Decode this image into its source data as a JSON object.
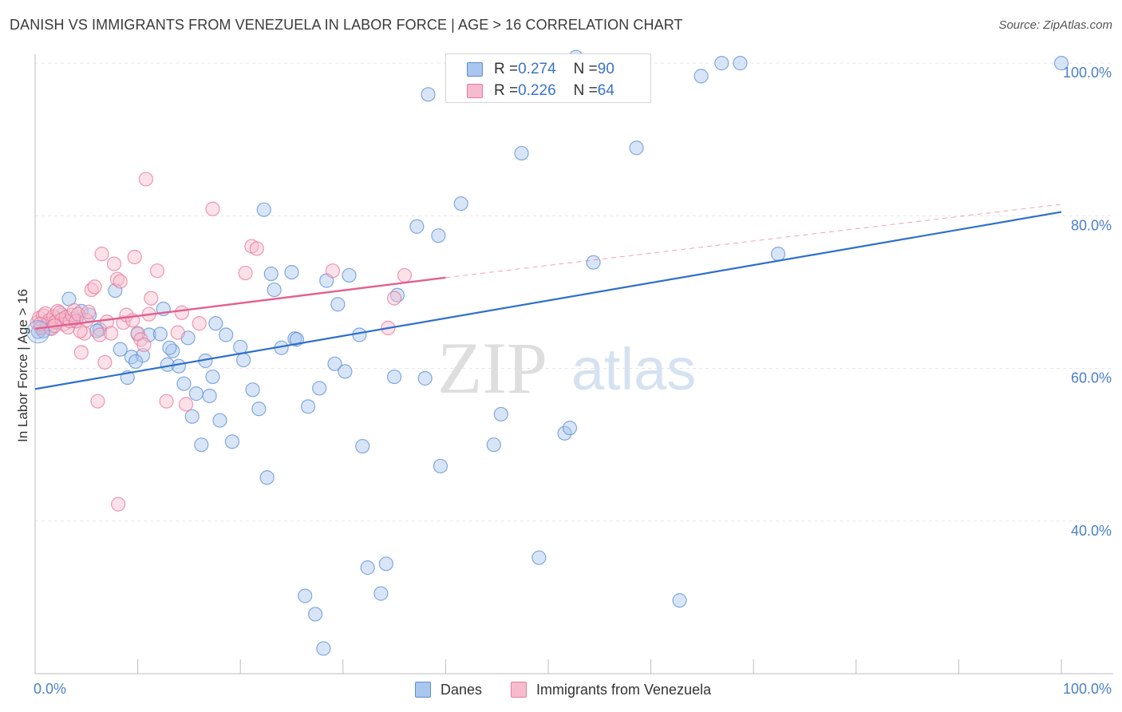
{
  "header": {
    "title": "DANISH VS IMMIGRANTS FROM VENEZUELA IN LABOR FORCE | AGE > 16 CORRELATION CHART",
    "source": "Source: ZipAtlas.com"
  },
  "watermark": {
    "zip": "ZIP",
    "atlas": "atlas"
  },
  "colors": {
    "danes_fill": "#a9c6ee",
    "danes_stroke": "#5b8fd6",
    "danes_line": "#2f6fcb",
    "venezuela_fill": "#f6bccd",
    "venezuela_stroke": "#e8789c",
    "venezuela_line": "#e2608f",
    "tick_label": "#4a7fc9",
    "grid": "#e6e6e6"
  },
  "legend": {
    "rows": [
      {
        "r_label": "R = ",
        "r_value": "0.274",
        "n_label": "N = ",
        "n_value": "90"
      },
      {
        "r_label": "R = ",
        "r_value": "0.226",
        "n_label": "N = ",
        "n_value": "64"
      }
    ]
  },
  "bottom_legend": {
    "danes": "Danes",
    "venezuela": "Immigrants from Venezuela"
  },
  "chart_data": {
    "type": "scatter",
    "ylabel": "In Labor Force | Age > 16",
    "xlabel": "",
    "xlim": [
      0,
      100
    ],
    "ylim": [
      20,
      102
    ],
    "x_ticks": [
      {
        "value": 0,
        "label": "0.0%"
      },
      {
        "value": 100,
        "label": "100.0%"
      }
    ],
    "x_minor_ticks": [
      10,
      20,
      30,
      40,
      50,
      60,
      70,
      80,
      90,
      100
    ],
    "y_ticks": [
      {
        "value": 40,
        "label": "40.0%"
      },
      {
        "value": 60,
        "label": "60.0%"
      },
      {
        "value": 80,
        "label": "80.0%"
      },
      {
        "value": 100,
        "label": "100.0%"
      }
    ],
    "grid": true,
    "legend_position": "top-center",
    "series": [
      {
        "name": "Danes",
        "r": 0.274,
        "n": 90,
        "trend": {
          "x": [
            0,
            100
          ],
          "y": [
            57.3,
            80.5
          ],
          "dashed_extension": false
        },
        "points": [
          [
            0.3,
            64.8
          ],
          [
            0.6,
            65.5
          ],
          [
            1.2,
            65.8
          ],
          [
            2.0,
            66.0
          ],
          [
            2.6,
            67.0
          ],
          [
            3.3,
            69.1
          ],
          [
            4.0,
            66.2
          ],
          [
            4.5,
            67.5
          ],
          [
            5.3,
            67.0
          ],
          [
            6.3,
            65.1
          ],
          [
            7.8,
            70.2
          ],
          [
            8.3,
            62.5
          ],
          [
            9.0,
            58.8
          ],
          [
            9.4,
            61.5
          ],
          [
            10.0,
            64.5
          ],
          [
            10.5,
            61.7
          ],
          [
            11.1,
            64.4
          ],
          [
            12.2,
            64.5
          ],
          [
            12.5,
            67.8
          ],
          [
            12.9,
            60.5
          ],
          [
            13.4,
            62.3
          ],
          [
            14.0,
            60.3
          ],
          [
            14.5,
            58.0
          ],
          [
            14.9,
            64.0
          ],
          [
            15.3,
            53.7
          ],
          [
            15.7,
            56.7
          ],
          [
            16.2,
            50.0
          ],
          [
            16.6,
            61.0
          ],
          [
            17.0,
            56.4
          ],
          [
            17.6,
            65.9
          ],
          [
            18.0,
            53.2
          ],
          [
            18.6,
            64.4
          ],
          [
            19.2,
            50.4
          ],
          [
            20.0,
            62.8
          ],
          [
            20.3,
            61.1
          ],
          [
            21.2,
            57.2
          ],
          [
            21.8,
            54.7
          ],
          [
            22.6,
            45.7
          ],
          [
            22.3,
            80.8
          ],
          [
            23.0,
            72.4
          ],
          [
            23.3,
            70.3
          ],
          [
            24.0,
            62.7
          ],
          [
            25.0,
            72.6
          ],
          [
            25.3,
            63.9
          ],
          [
            25.5,
            63.8
          ],
          [
            26.3,
            30.2
          ],
          [
            26.6,
            55.0
          ],
          [
            27.3,
            27.8
          ],
          [
            27.7,
            57.4
          ],
          [
            28.1,
            23.3
          ],
          [
            28.4,
            71.5
          ],
          [
            29.2,
            60.6
          ],
          [
            29.5,
            68.4
          ],
          [
            30.2,
            59.6
          ],
          [
            30.6,
            72.2
          ],
          [
            31.6,
            64.4
          ],
          [
            31.9,
            49.8
          ],
          [
            32.4,
            33.9
          ],
          [
            33.7,
            30.5
          ],
          [
            34.2,
            34.4
          ],
          [
            35.0,
            58.9
          ],
          [
            35.3,
            69.6
          ],
          [
            37.2,
            78.6
          ],
          [
            38.0,
            58.7
          ],
          [
            38.3,
            95.9
          ],
          [
            39.3,
            77.4
          ],
          [
            39.5,
            47.2
          ],
          [
            41.5,
            81.6
          ],
          [
            44.7,
            50.0
          ],
          [
            45.4,
            54.0
          ],
          [
            47.4,
            88.2
          ],
          [
            49.1,
            35.2
          ],
          [
            51.6,
            51.5
          ],
          [
            52.1,
            52.2
          ],
          [
            52.7,
            100.8
          ],
          [
            54.4,
            73.9
          ],
          [
            58.6,
            88.9
          ],
          [
            62.8,
            29.6
          ],
          [
            64.9,
            98.3
          ],
          [
            66.9,
            100.0
          ],
          [
            68.7,
            100.0
          ],
          [
            72.4,
            75.0
          ],
          [
            100.0,
            100.0
          ],
          [
            0.8,
            64.9
          ],
          [
            1.5,
            65.3
          ],
          [
            3.8,
            66.5
          ],
          [
            6.0,
            64.9
          ],
          [
            9.8,
            60.9
          ],
          [
            13.1,
            62.7
          ],
          [
            17.3,
            58.9
          ]
        ]
      },
      {
        "name": "Immigrants from Venezuela",
        "r": 0.226,
        "n": 64,
        "trend": {
          "x": [
            0,
            40
          ],
          "y": [
            65.2,
            71.9
          ],
          "dashed_extension_to": [
            100,
            81.5
          ]
        },
        "points": [
          [
            0.2,
            66.0
          ],
          [
            0.4,
            66.6
          ],
          [
            0.6,
            65.3
          ],
          [
            0.8,
            66.9
          ],
          [
            1.0,
            67.2
          ],
          [
            1.2,
            65.8
          ],
          [
            1.4,
            66.3
          ],
          [
            1.6,
            65.2
          ],
          [
            1.8,
            66.8
          ],
          [
            2.0,
            66.1
          ],
          [
            2.2,
            67.5
          ],
          [
            2.4,
            67.3
          ],
          [
            2.6,
            66.4
          ],
          [
            2.8,
            65.8
          ],
          [
            3.0,
            66.7
          ],
          [
            3.2,
            65.4
          ],
          [
            3.4,
            66.2
          ],
          [
            3.6,
            67.0
          ],
          [
            3.8,
            67.6
          ],
          [
            4.0,
            66.2
          ],
          [
            4.2,
            67.1
          ],
          [
            4.5,
            62.1
          ],
          [
            4.8,
            64.6
          ],
          [
            5.0,
            66.3
          ],
          [
            5.2,
            67.4
          ],
          [
            5.5,
            70.3
          ],
          [
            5.8,
            70.7
          ],
          [
            6.1,
            55.7
          ],
          [
            6.3,
            64.4
          ],
          [
            6.5,
            75.0
          ],
          [
            6.8,
            60.8
          ],
          [
            7.0,
            66.1
          ],
          [
            7.4,
            64.6
          ],
          [
            7.7,
            73.7
          ],
          [
            8.0,
            71.7
          ],
          [
            8.3,
            71.4
          ],
          [
            8.1,
            42.2
          ],
          [
            8.6,
            66.0
          ],
          [
            8.9,
            67.0
          ],
          [
            9.5,
            66.3
          ],
          [
            9.7,
            74.6
          ],
          [
            10.0,
            64.6
          ],
          [
            10.3,
            63.8
          ],
          [
            10.6,
            63.1
          ],
          [
            10.8,
            84.8
          ],
          [
            11.1,
            67.1
          ],
          [
            11.3,
            69.2
          ],
          [
            11.9,
            72.8
          ],
          [
            12.8,
            55.7
          ],
          [
            13.9,
            64.7
          ],
          [
            14.3,
            67.3
          ],
          [
            14.7,
            55.3
          ],
          [
            16.0,
            65.9
          ],
          [
            17.3,
            80.9
          ],
          [
            20.5,
            72.5
          ],
          [
            21.1,
            76.0
          ],
          [
            21.6,
            75.7
          ],
          [
            29.0,
            72.8
          ],
          [
            34.4,
            65.3
          ],
          [
            35.0,
            69.2
          ],
          [
            36.0,
            72.2
          ],
          [
            0.5,
            65.8
          ],
          [
            1.9,
            65.6
          ],
          [
            4.4,
            64.9
          ]
        ]
      }
    ]
  }
}
